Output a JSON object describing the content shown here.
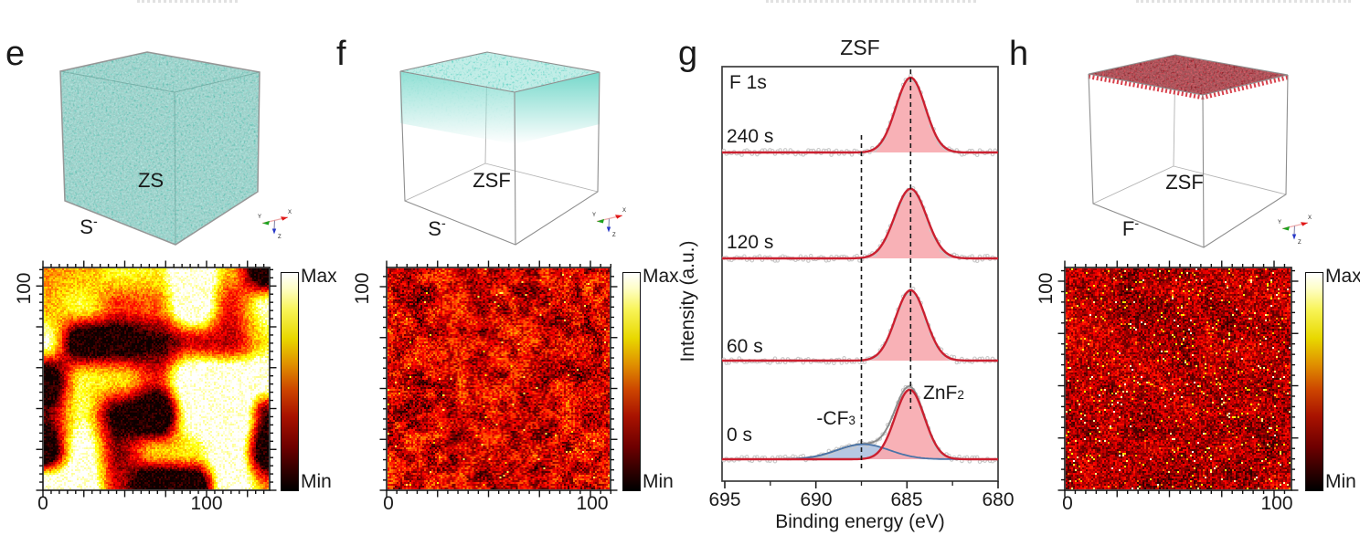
{
  "figure": {
    "panels": {
      "e": {
        "letter": "e",
        "cube": {
          "label": "ZS",
          "ion_symbol": "S",
          "ion_charge": "-",
          "render": "full teal volume"
        },
        "map_pattern": "large bright blobs"
      },
      "f": {
        "letter": "f",
        "cube": {
          "label": "ZSF",
          "ion_symbol": "S",
          "ion_charge": "-",
          "render": "teal top surface layer fading downward"
        },
        "map_pattern": "fine red speckle"
      },
      "g": {
        "letter": "g"
      },
      "h": {
        "letter": "h",
        "cube": {
          "label": "ZSF",
          "ion_symbol": "F",
          "ion_charge": "-",
          "render": "red top surface layer"
        },
        "map_pattern": "dark field with sparse bright dots"
      }
    }
  },
  "chart_data": [
    {
      "id": "xps-f1s",
      "type": "line",
      "title": "ZSF",
      "corner_label": "F 1s",
      "xlabel": "Binding energy (eV)",
      "ylabel": "Intensity (a.u.)",
      "x_range_eV": [
        695,
        680
      ],
      "x_ticks": [
        695,
        690,
        685,
        680
      ],
      "x_minor_ticks": [
        692.5,
        687.5,
        682.5
      ],
      "guides_eV": [
        687.5,
        684.8
      ],
      "peak_labels": [
        {
          "text": "-CF",
          "sub": "3"
        },
        {
          "text": "ZnF",
          "sub": "2"
        }
      ],
      "series": [
        {
          "name": "240 s",
          "peaks": [
            {
              "assignment": "ZnF2",
              "center_eV": 684.8,
              "rel_height": 1.0,
              "fwhm_eV": 1.9,
              "color": "red"
            }
          ]
        },
        {
          "name": "120 s",
          "peaks": [
            {
              "assignment": "ZnF2",
              "center_eV": 684.8,
              "rel_height": 0.93,
              "fwhm_eV": 2.05,
              "color": "red"
            }
          ]
        },
        {
          "name": "60 s",
          "peaks": [
            {
              "assignment": "ZnF2",
              "center_eV": 684.8,
              "rel_height": 0.94,
              "fwhm_eV": 1.95,
              "color": "red"
            }
          ]
        },
        {
          "name": "0 s",
          "envelope": true,
          "peaks": [
            {
              "assignment": "ZnF2",
              "center_eV": 684.85,
              "rel_height": 0.93,
              "fwhm_eV": 1.9,
              "color": "red"
            },
            {
              "assignment": "-CF3",
              "center_eV": 687.4,
              "rel_height": 0.2,
              "fwhm_eV": 3.4,
              "color": "blue"
            }
          ]
        }
      ]
    },
    {
      "id": "map-e",
      "type": "heatmap",
      "panel": "e",
      "colormap": "hot",
      "x_ticks": [
        "0",
        "100"
      ],
      "y_ticks": [
        "100"
      ],
      "colorbar": {
        "max": "Max",
        "min": "Min"
      },
      "pattern": "large smooth bright blobs on dark background"
    },
    {
      "id": "map-f",
      "type": "heatmap",
      "panel": "f",
      "colormap": "hot",
      "x_ticks": [
        "0",
        "100"
      ],
      "y_ticks": [
        "100"
      ],
      "colorbar": {
        "max": "Max",
        "min": "Min"
      },
      "pattern": "fine uniform red speckle"
    },
    {
      "id": "map-h",
      "type": "heatmap",
      "panel": "h",
      "colormap": "hot",
      "x_ticks": [
        "0",
        "100"
      ],
      "y_ticks": [
        "100"
      ],
      "colorbar": {
        "max": "Max",
        "min": "Min"
      },
      "pattern": "dark field with sparse bright yellow dots"
    }
  ]
}
